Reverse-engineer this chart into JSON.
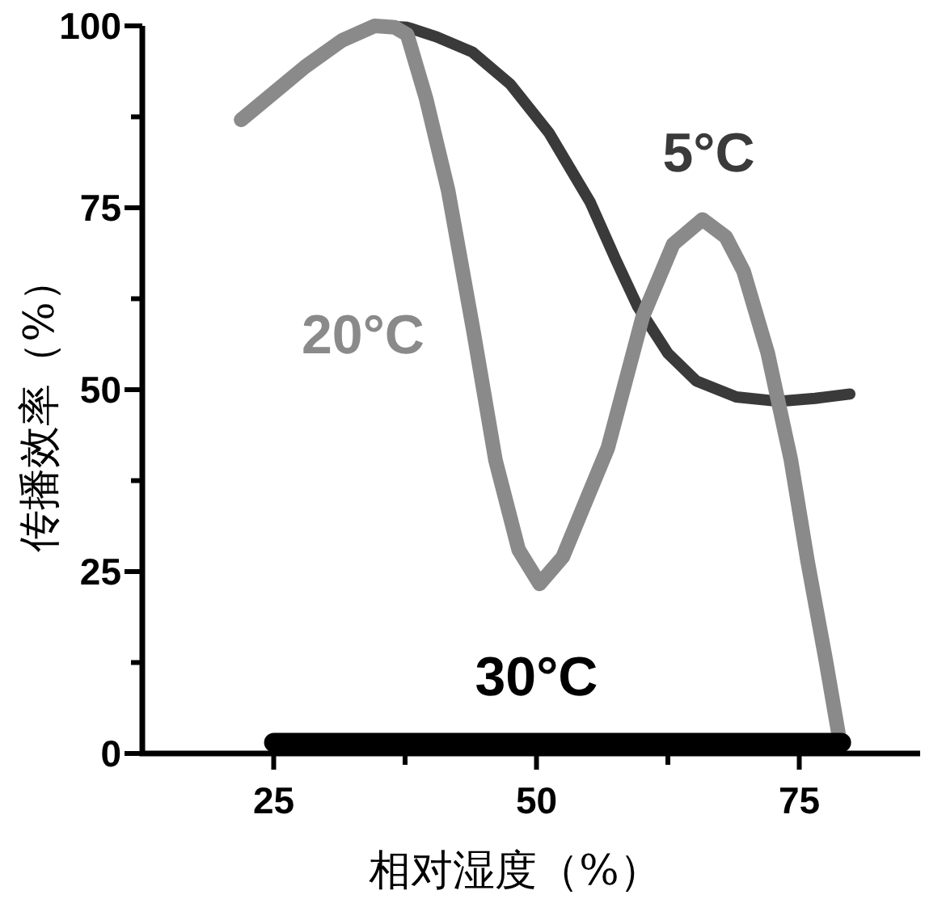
{
  "chart_data": {
    "type": "line",
    "xlabel": "相对湿度（%）",
    "ylabel": "传播效率（%）",
    "xlim": [
      12.5,
      86.5
    ],
    "ylim": [
      0,
      100
    ],
    "xticks": [
      25,
      {
        "value": 37.5,
        "label": null
      },
      50,
      {
        "value": 62.5,
        "label": null
      },
      75
    ],
    "yticks": [
      0,
      {
        "value": 12.5,
        "label": null
      },
      25,
      {
        "value": 37.5,
        "label": null
      },
      50,
      {
        "value": 62.5,
        "label": null
      },
      75,
      {
        "value": 87.5,
        "label": null
      },
      100
    ],
    "grid": false,
    "legend": false,
    "marker": "none",
    "line_style": "solid",
    "series": [
      {
        "name": "5°C",
        "color": "#3a3a3a",
        "x": [
          35,
          37.7,
          40.5,
          43.9,
          47.5,
          51.2,
          55.1,
          57.5,
          59.6,
          62.5,
          65.2,
          69,
          73,
          76.5,
          79.8
        ],
        "values": [
          100,
          99.8,
          98.5,
          96.4,
          92,
          85.3,
          75.8,
          68,
          61.5,
          55,
          51.2,
          49,
          48.4,
          48.8,
          49.4
        ]
      },
      {
        "name": "20°C",
        "color": "#8a8a8a",
        "x": [
          21.9,
          25,
          28,
          31.5,
          34.6,
          36.5,
          37.7,
          39.5,
          41.6,
          44,
          46.1,
          48.3,
          50.3,
          52.5,
          54.5,
          56.8,
          60.1,
          63,
          65.8,
          68,
          69.7,
          72,
          74.2,
          75.8,
          77.5,
          78.9
        ],
        "values": [
          87.1,
          90.8,
          94.4,
          98,
          100,
          99.8,
          98.8,
          90,
          77.4,
          58,
          40.3,
          28,
          23.3,
          27,
          34,
          42,
          60,
          70,
          73.4,
          71,
          66.3,
          55,
          40.3,
          26.4,
          13,
          1.3
        ]
      },
      {
        "name": "30°C",
        "color": "#000000",
        "x": [
          25,
          79
        ],
        "values": [
          1.5,
          1.5
        ]
      }
    ]
  }
}
